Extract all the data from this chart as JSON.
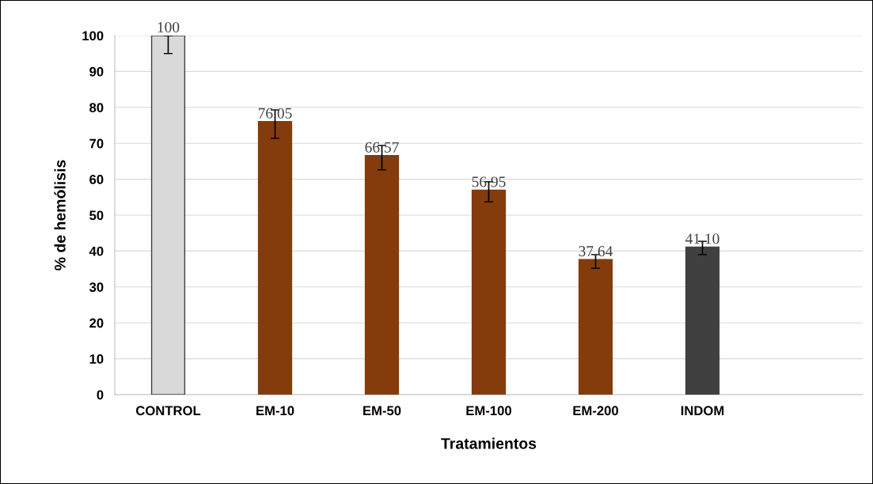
{
  "chart_data": {
    "type": "bar",
    "xlabel": "Tratamientos",
    "ylabel": "% de hemólisis",
    "categories": [
      "CONTROL",
      "EM-10",
      "EM-50",
      "EM-100",
      "EM-200",
      "INDOM",
      null
    ],
    "values": [
      100,
      76.05,
      66.57,
      56.95,
      37.64,
      41.1,
      null
    ],
    "value_labels": [
      "100",
      "76.05",
      "66.57",
      "56.95",
      "37.64",
      "41.10",
      null
    ],
    "colors": [
      "#d9d9d9",
      "#843c0c",
      "#843c0c",
      "#843c0c",
      "#843c0c",
      "#404040",
      null
    ],
    "errors": [
      [
        95,
        100
      ],
      [
        71.4,
        79.3
      ],
      [
        62.6,
        69.4
      ],
      [
        53.7,
        59.3
      ],
      [
        35.2,
        39.0
      ],
      [
        39.0,
        42.7
      ],
      null
    ],
    "ylim": [
      0,
      100
    ],
    "yticks": [
      0,
      10,
      20,
      30,
      40,
      50,
      60,
      70,
      80,
      90,
      100
    ],
    "grid": "y",
    "legend": false
  }
}
